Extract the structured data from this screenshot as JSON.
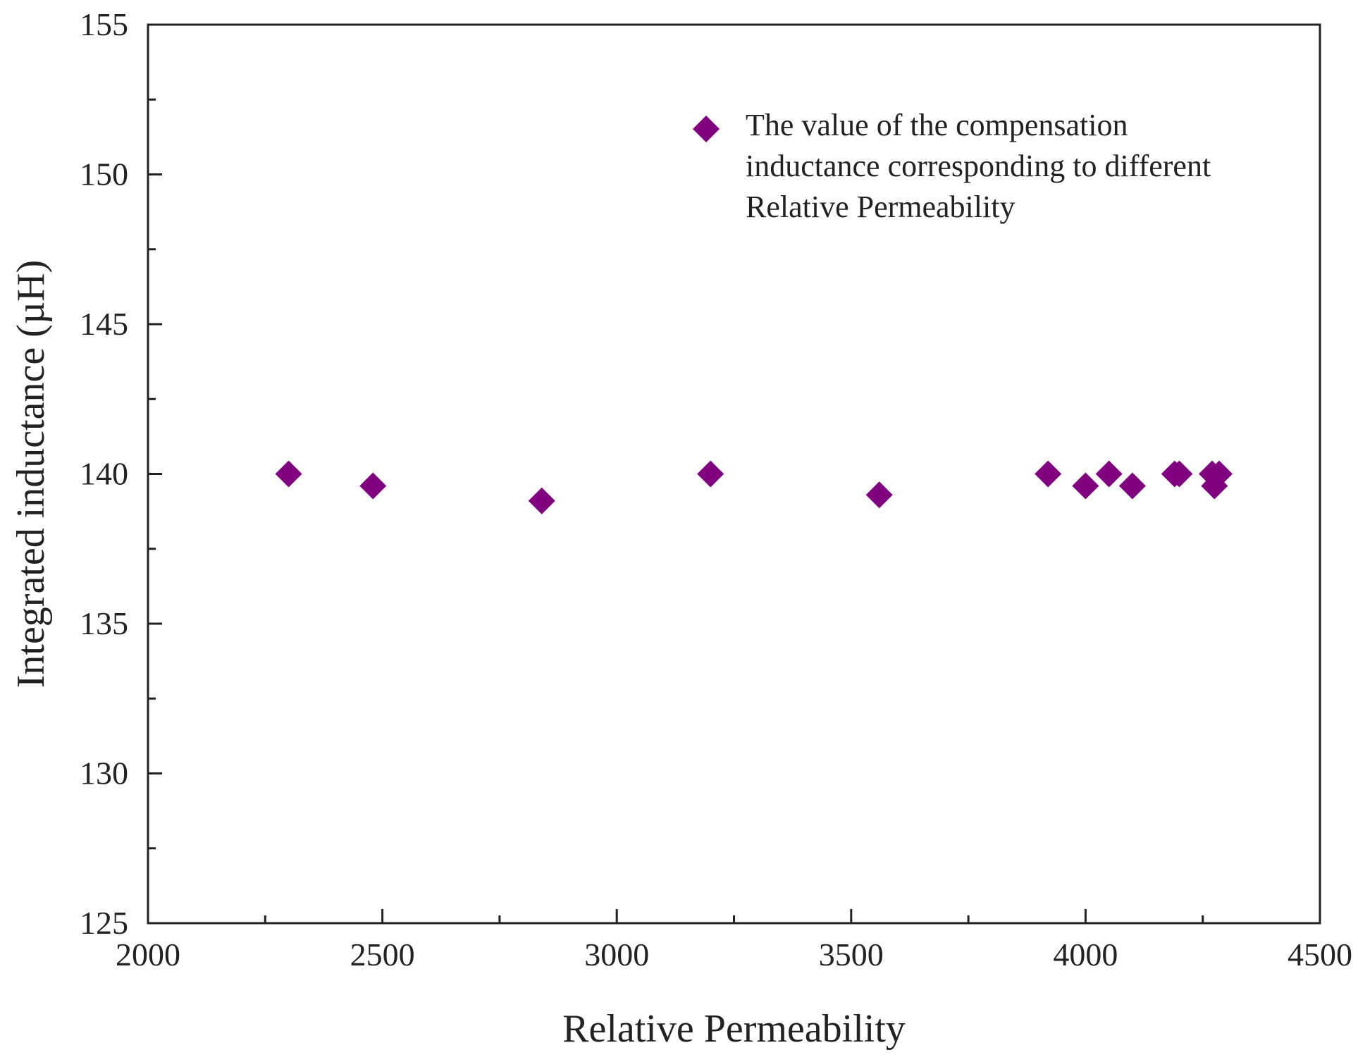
{
  "chart_data": {
    "type": "scatter",
    "title": "",
    "xlabel": "Relative Permeability",
    "ylabel": "Integrated inductance (µH)",
    "xlim": [
      2000,
      4500
    ],
    "ylim": [
      125,
      155
    ],
    "x_ticks": [
      2000,
      2500,
      3000,
      3500,
      4000,
      4500
    ],
    "x_minor_ticks": [
      2250,
      2750,
      3250,
      3750,
      4250
    ],
    "y_ticks": [
      125,
      130,
      135,
      140,
      145,
      150,
      155
    ],
    "y_minor_ticks": [
      127.5,
      132.5,
      137.5,
      142.5,
      147.5,
      152.5
    ],
    "grid": false,
    "legend_position": "top-right",
    "marker": "diamond",
    "series": [
      {
        "name": "The value of the compensation inductance corresponding to different Relative Permeability",
        "legend_lines": [
          "The value of the compensation",
          "inductance corresponding to different",
          "Relative Permeability"
        ],
        "color": "#800080",
        "x": [
          2300,
          2480,
          2840,
          3200,
          3560,
          3920,
          4000,
          4050,
          4100,
          4190,
          4200,
          4270,
          4275,
          4285
        ],
        "y": [
          140.0,
          139.6,
          139.1,
          140.0,
          139.3,
          140.0,
          139.6,
          140.0,
          139.6,
          140.0,
          140.0,
          140.0,
          139.6,
          140.0
        ]
      }
    ]
  }
}
